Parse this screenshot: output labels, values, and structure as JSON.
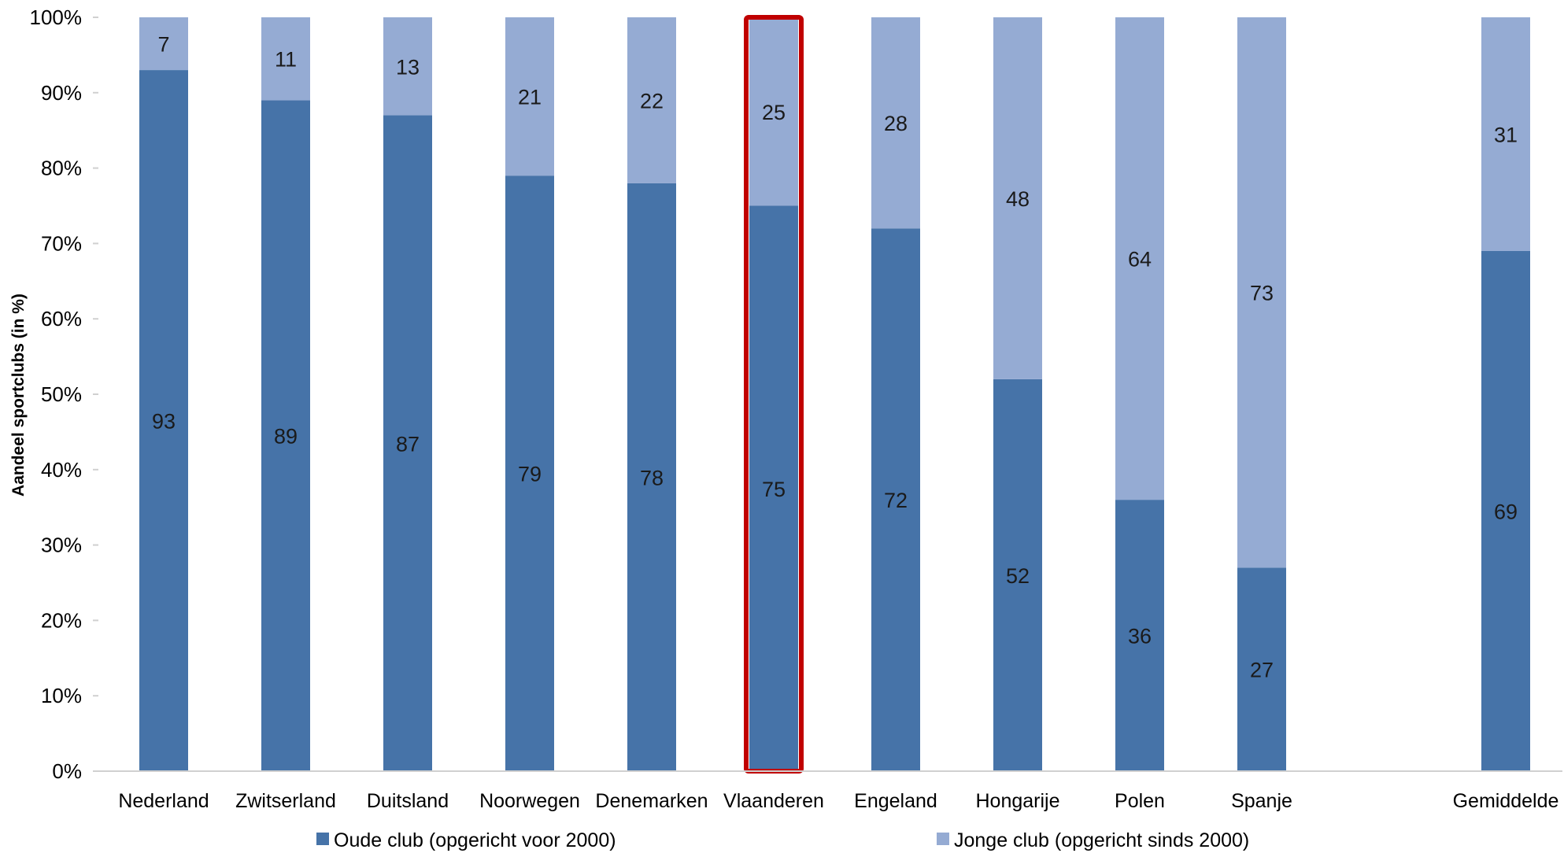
{
  "chart_data": {
    "type": "bar",
    "stacked": true,
    "title": "",
    "xlabel": "",
    "ylabel": "Aandeel sportclubs (in %)",
    "ylim": [
      0,
      100
    ],
    "yticks": [
      "0%",
      "10%",
      "20%",
      "30%",
      "40%",
      "50%",
      "60%",
      "70%",
      "80%",
      "90%",
      "100%"
    ],
    "grid": false,
    "legend_position": "bottom",
    "categories": [
      "Nederland",
      "Zwitserland",
      "Duitsland",
      "Noorwegen",
      "Denemarken",
      "Vlaanderen",
      "Engeland",
      "Hongarije",
      "Polen",
      "Spanje",
      "",
      "Gemiddelde"
    ],
    "highlighted_category": "Vlaanderen",
    "highlight_color": "#c00000",
    "series": [
      {
        "name": "Oude club (opgericht voor 2000)",
        "color": "#4673a8",
        "values": [
          93,
          89,
          87,
          79,
          78,
          75,
          72,
          52,
          36,
          27,
          null,
          69
        ]
      },
      {
        "name": "Jonge club (opgericht sinds 2000)",
        "color": "#95abd3",
        "values": [
          7,
          11,
          13,
          21,
          22,
          25,
          28,
          48,
          64,
          73,
          null,
          31
        ]
      }
    ]
  }
}
